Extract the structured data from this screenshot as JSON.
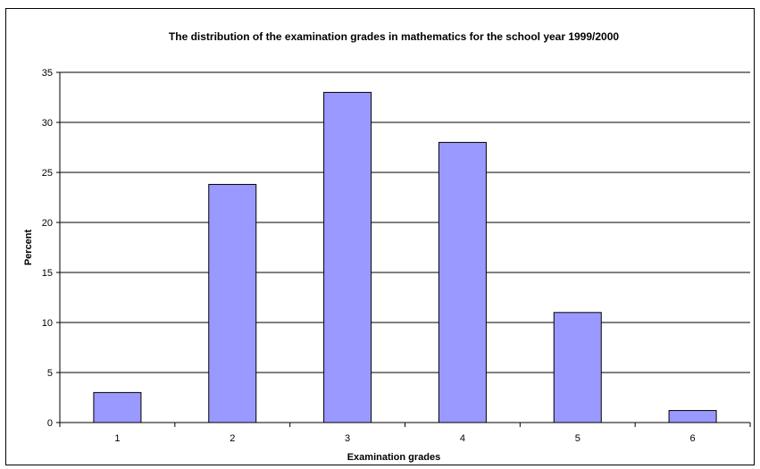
{
  "chart_data": {
    "type": "bar",
    "title": "The distribution of the examination grades in mathematics for the school year 1999/2000",
    "xlabel": "Examination grades",
    "ylabel": "Percent",
    "categories": [
      "1",
      "2",
      "3",
      "4",
      "5",
      "6"
    ],
    "values": [
      3,
      23.8,
      33,
      28,
      11,
      1.2
    ],
    "ylim": [
      0,
      35
    ],
    "yticks": [
      0,
      5,
      10,
      15,
      20,
      25,
      30,
      35
    ],
    "grid": true,
    "legend": "none",
    "colors": {
      "bar_fill": "#9999ff",
      "bar_stroke": "#000000",
      "grid": "#000000"
    }
  }
}
